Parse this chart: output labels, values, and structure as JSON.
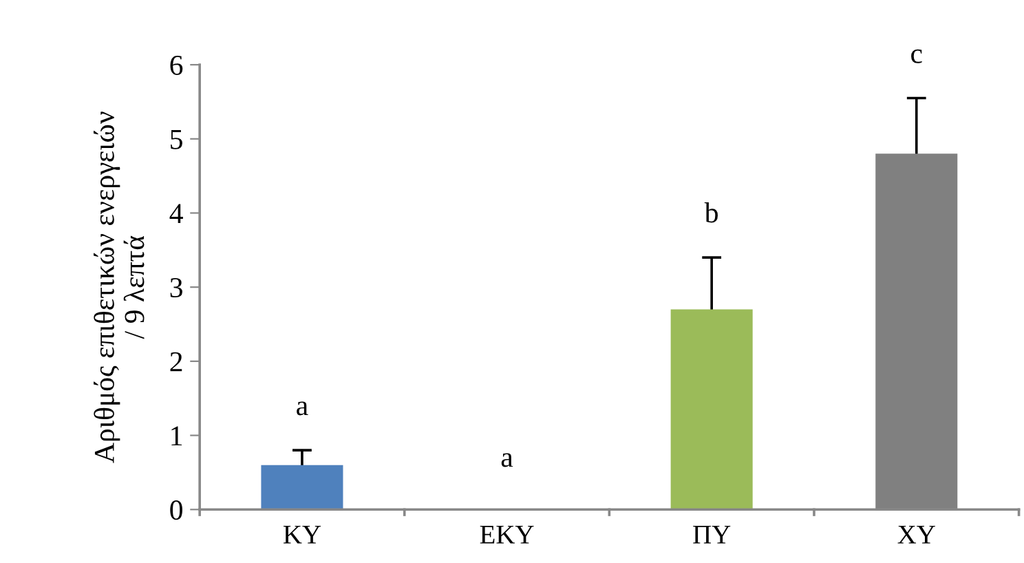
{
  "chart_data": {
    "type": "bar",
    "ylabel": "Αριθμός επιθετικών ενεργειών\n/ 9 λεπτά",
    "categories": [
      "ΚΥ",
      "ΕΚΥ",
      "ΠΥ",
      "ΧΥ"
    ],
    "values": [
      0.6,
      0,
      2.7,
      4.8
    ],
    "errors": [
      0.2,
      null,
      0.7,
      0.75
    ],
    "colors": [
      "#4f81bd",
      "#c0504d",
      "#9bbb59",
      "#808080"
    ],
    "ylim": [
      0,
      6
    ],
    "yticks": [
      0,
      1,
      2,
      3,
      4,
      5,
      6
    ],
    "grid": false,
    "annotations": [
      "a",
      "a",
      "b",
      "c"
    ]
  }
}
